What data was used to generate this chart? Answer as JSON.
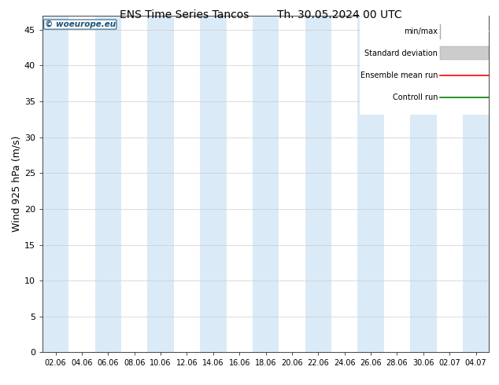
{
  "title_left": "ENS Time Series Tancos",
  "title_right": "Th. 30.05.2024 00 UTC",
  "ylabel": "Wind 925 hPa (m/s)",
  "ylim": [
    0,
    47
  ],
  "yticks": [
    0,
    5,
    10,
    15,
    20,
    25,
    30,
    35,
    40,
    45
  ],
  "xtick_labels": [
    "02.06",
    "04.06",
    "06.06",
    "08.06",
    "10.06",
    "12.06",
    "14.06",
    "16.06",
    "18.06",
    "20.06",
    "22.06",
    "24.06",
    "26.06",
    "28.06",
    "30.06",
    "02.07",
    "04.07"
  ],
  "background_color": "#ffffff",
  "plot_bg_color": "#ffffff",
  "band_color": "#daeaf7",
  "watermark": "© woeurope.eu",
  "watermark_color": "#1a5276",
  "legend_labels": [
    "min/max",
    "Standard deviation",
    "Ensemble mean run",
    "Controll run"
  ],
  "ensemble_mean_color": "#ff0000",
  "control_run_color": "#008000",
  "minmax_color": "#aaaaaa",
  "std_color": "#cccccc",
  "font_size_title": 10,
  "font_size_ylabel": 9,
  "font_size_ticks": 8,
  "font_size_legend": 7,
  "n_times": 17,
  "band_indices": [
    0,
    2,
    4,
    6,
    8,
    10,
    12,
    14,
    16
  ]
}
